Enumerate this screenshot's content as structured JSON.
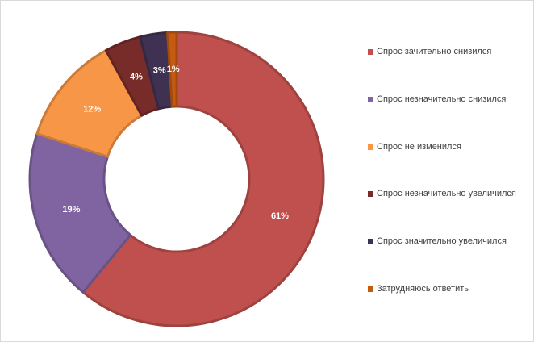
{
  "chart_data": {
    "type": "pie",
    "variant": "doughnut",
    "title": "",
    "legend_position": "right",
    "slices": [
      {
        "name": "Спрос зачительно снизился",
        "value": 61,
        "label": "61%",
        "color": "#c0504d"
      },
      {
        "name": "Спрос незначительно снизился",
        "value": 19,
        "label": "19%",
        "color": "#8064a2"
      },
      {
        "name": "Спрос не изменился",
        "value": 12,
        "label": "12%",
        "color": "#f79646"
      },
      {
        "name": "Спрос незначительно увеличился",
        "value": 4,
        "label": "4%",
        "color": "#772c2a"
      },
      {
        "name": "Спрос значительно увеличился",
        "value": 3,
        "label": "3%",
        "color": "#3f3151"
      },
      {
        "name": "Затрудняюсь ответить",
        "value": 1,
        "label": "1%",
        "color": "#c55a11"
      }
    ]
  }
}
